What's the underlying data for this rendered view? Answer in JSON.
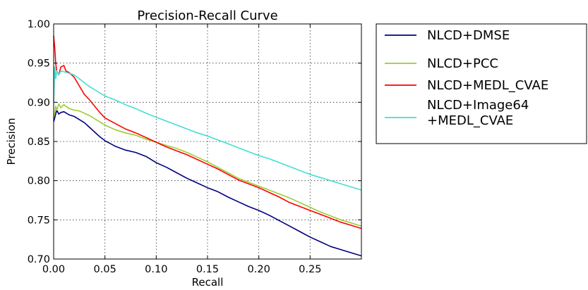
{
  "chart_data": {
    "type": "line",
    "title": "Precision-Recall Curve",
    "xlabel": "Recall",
    "ylabel": "Precision",
    "xlim": [
      0.0,
      0.3
    ],
    "ylim": [
      0.7,
      1.0
    ],
    "grid": true,
    "legend_placement": "outside right, top",
    "xticks": [
      "0.00",
      "0.05",
      "0.10",
      "0.15",
      "0.20",
      "0.25"
    ],
    "xtick_values": [
      0.0,
      0.05,
      0.1,
      0.15,
      0.2,
      0.25
    ],
    "yticks": [
      "0.70",
      "0.75",
      "0.80",
      "0.85",
      "0.90",
      "0.95",
      "1.00"
    ],
    "ytick_values": [
      0.7,
      0.75,
      0.8,
      0.85,
      0.9,
      0.95,
      1.0
    ],
    "series": [
      {
        "name": "NLCD+DMSE",
        "color": "#000080",
        "x": [
          0.0,
          0.001,
          0.002,
          0.003,
          0.005,
          0.007,
          0.01,
          0.015,
          0.02,
          0.025,
          0.03,
          0.035,
          0.04,
          0.045,
          0.05,
          0.06,
          0.07,
          0.08,
          0.09,
          0.1,
          0.11,
          0.12,
          0.13,
          0.14,
          0.15,
          0.16,
          0.17,
          0.18,
          0.19,
          0.2,
          0.21,
          0.22,
          0.23,
          0.24,
          0.25,
          0.26,
          0.27,
          0.28,
          0.29,
          0.3
        ],
        "y": [
          0.875,
          0.88,
          0.885,
          0.89,
          0.885,
          0.887,
          0.888,
          0.884,
          0.882,
          0.878,
          0.874,
          0.868,
          0.862,
          0.856,
          0.851,
          0.844,
          0.839,
          0.836,
          0.831,
          0.823,
          0.817,
          0.81,
          0.803,
          0.797,
          0.791,
          0.786,
          0.779,
          0.773,
          0.767,
          0.762,
          0.756,
          0.749,
          0.742,
          0.735,
          0.728,
          0.722,
          0.716,
          0.712,
          0.708,
          0.704
        ]
      },
      {
        "name": "NLCD+PCC",
        "color": "#9acd32",
        "x": [
          0.0,
          0.001,
          0.002,
          0.003,
          0.005,
          0.007,
          0.01,
          0.015,
          0.02,
          0.025,
          0.03,
          0.035,
          0.04,
          0.045,
          0.05,
          0.06,
          0.07,
          0.08,
          0.09,
          0.1,
          0.11,
          0.12,
          0.13,
          0.14,
          0.15,
          0.16,
          0.17,
          0.18,
          0.19,
          0.2,
          0.21,
          0.22,
          0.23,
          0.24,
          0.25,
          0.26,
          0.27,
          0.28,
          0.29,
          0.3
        ],
        "y": [
          0.88,
          0.885,
          0.895,
          0.89,
          0.898,
          0.893,
          0.897,
          0.892,
          0.89,
          0.889,
          0.886,
          0.883,
          0.879,
          0.875,
          0.871,
          0.865,
          0.861,
          0.858,
          0.853,
          0.849,
          0.845,
          0.841,
          0.836,
          0.83,
          0.824,
          0.817,
          0.81,
          0.803,
          0.798,
          0.793,
          0.788,
          0.783,
          0.778,
          0.772,
          0.766,
          0.76,
          0.755,
          0.75,
          0.746,
          0.742
        ]
      },
      {
        "name": "NLCD+MEDL_CVAE",
        "color": "#ff0000",
        "x": [
          0.0,
          0.001,
          0.002,
          0.003,
          0.005,
          0.007,
          0.01,
          0.012,
          0.015,
          0.02,
          0.025,
          0.03,
          0.035,
          0.04,
          0.045,
          0.05,
          0.06,
          0.07,
          0.08,
          0.09,
          0.1,
          0.11,
          0.12,
          0.13,
          0.14,
          0.15,
          0.16,
          0.17,
          0.18,
          0.19,
          0.2,
          0.21,
          0.22,
          0.23,
          0.24,
          0.25,
          0.26,
          0.27,
          0.28,
          0.29,
          0.3
        ],
        "y": [
          0.985,
          0.97,
          0.95,
          0.94,
          0.935,
          0.945,
          0.947,
          0.94,
          0.938,
          0.932,
          0.921,
          0.91,
          0.903,
          0.895,
          0.887,
          0.88,
          0.873,
          0.866,
          0.861,
          0.855,
          0.849,
          0.843,
          0.838,
          0.833,
          0.827,
          0.821,
          0.815,
          0.808,
          0.801,
          0.796,
          0.791,
          0.785,
          0.779,
          0.772,
          0.767,
          0.762,
          0.757,
          0.752,
          0.747,
          0.743,
          0.739
        ]
      },
      {
        "name": "NLCD+Image64\n+MEDL_CVAE",
        "color": "#40e0d0",
        "x": [
          0.0,
          0.001,
          0.002,
          0.003,
          0.005,
          0.007,
          0.01,
          0.015,
          0.02,
          0.025,
          0.03,
          0.035,
          0.04,
          0.045,
          0.05,
          0.06,
          0.07,
          0.08,
          0.09,
          0.1,
          0.11,
          0.12,
          0.13,
          0.14,
          0.15,
          0.16,
          0.17,
          0.18,
          0.19,
          0.2,
          0.21,
          0.22,
          0.23,
          0.24,
          0.25,
          0.26,
          0.27,
          0.28,
          0.29,
          0.3
        ],
        "y": [
          0.9,
          0.945,
          0.93,
          0.94,
          0.935,
          0.94,
          0.939,
          0.937,
          0.935,
          0.93,
          0.925,
          0.92,
          0.916,
          0.912,
          0.908,
          0.903,
          0.897,
          0.892,
          0.886,
          0.881,
          0.876,
          0.871,
          0.866,
          0.861,
          0.857,
          0.852,
          0.847,
          0.842,
          0.837,
          0.832,
          0.828,
          0.823,
          0.818,
          0.813,
          0.808,
          0.804,
          0.8,
          0.796,
          0.792,
          0.788
        ]
      }
    ]
  }
}
